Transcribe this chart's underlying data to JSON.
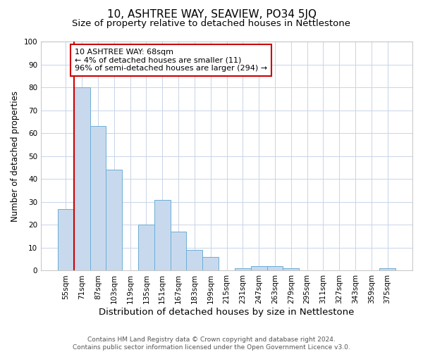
{
  "title": "10, ASHTREE WAY, SEAVIEW, PO34 5JQ",
  "subtitle": "Size of property relative to detached houses in Nettlestone",
  "xlabel": "Distribution of detached houses by size in Nettlestone",
  "ylabel": "Number of detached properties",
  "categories": [
    "55sqm",
    "71sqm",
    "87sqm",
    "103sqm",
    "119sqm",
    "135sqm",
    "151sqm",
    "167sqm",
    "183sqm",
    "199sqm",
    "215sqm",
    "231sqm",
    "247sqm",
    "263sqm",
    "279sqm",
    "295sqm",
    "311sqm",
    "327sqm",
    "343sqm",
    "359sqm",
    "375sqm"
  ],
  "values": [
    27,
    80,
    63,
    44,
    0,
    20,
    31,
    17,
    9,
    6,
    0,
    1,
    2,
    2,
    1,
    0,
    0,
    0,
    0,
    0,
    1
  ],
  "bar_color": "#c8d9ee",
  "bar_edge_color": "#6baed6",
  "grid_color": "#c8d4e8",
  "annotation_box_text_line1": "10 ASHTREE WAY: 68sqm",
  "annotation_box_text_line2": "← 4% of detached houses are smaller (11)",
  "annotation_box_text_line3": "96% of semi-detached houses are larger (294) →",
  "annotation_box_color": "#ffffff",
  "annotation_box_edge_color": "#cc0000",
  "vline_color": "#cc0000",
  "ylim": [
    0,
    100
  ],
  "yticks": [
    0,
    10,
    20,
    30,
    40,
    50,
    60,
    70,
    80,
    90,
    100
  ],
  "footer_line1": "Contains HM Land Registry data © Crown copyright and database right 2024.",
  "footer_line2": "Contains public sector information licensed under the Open Government Licence v3.0.",
  "title_fontsize": 11,
  "subtitle_fontsize": 9.5,
  "xlabel_fontsize": 9.5,
  "ylabel_fontsize": 8.5,
  "tick_fontsize": 7.5,
  "annotation_fontsize": 8,
  "footer_fontsize": 6.5
}
